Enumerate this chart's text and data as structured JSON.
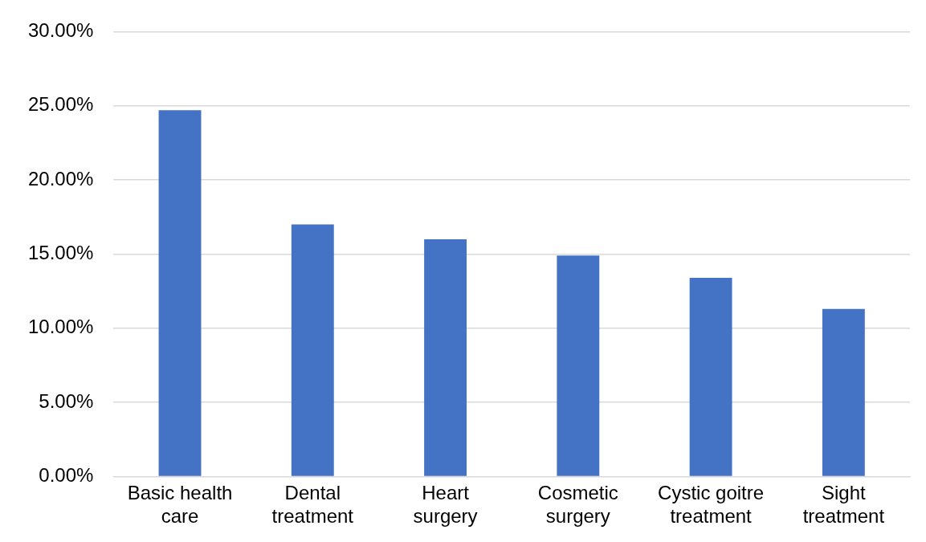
{
  "chart_data": {
    "type": "bar",
    "categories": [
      "Basic health care",
      "Dental treatment",
      "Heart surgery",
      "Cosmetic surgery",
      "Cystic goitre treatment",
      "Sight treatment"
    ],
    "values": [
      24.7,
      17.0,
      16.0,
      14.9,
      13.4,
      11.3
    ],
    "color": "#4472c4",
    "ylim": [
      0,
      30
    ],
    "yticks": [
      {
        "value": 0,
        "label": "0.00%"
      },
      {
        "value": 5,
        "label": "5.00%"
      },
      {
        "value": 10,
        "label": "10.00%"
      },
      {
        "value": 15,
        "label": "15.00%"
      },
      {
        "value": 20,
        "label": "20.00%"
      },
      {
        "value": 25,
        "label": "25.00%"
      },
      {
        "value": 30,
        "label": "30.00%"
      }
    ],
    "grid": "y"
  }
}
